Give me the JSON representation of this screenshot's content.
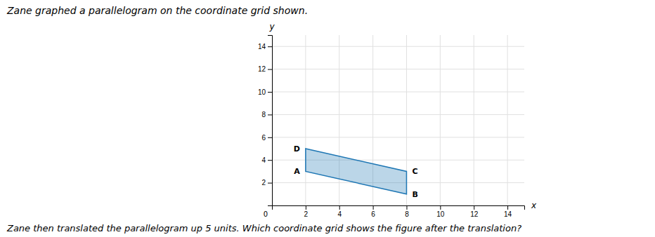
{
  "chart_data": {
    "type": "polygon",
    "title": "Zane graphed a parallelogram on the coordinate grid shown.",
    "x": [
      2,
      2,
      8,
      8
    ],
    "y": [
      3,
      5,
      3,
      1
    ],
    "labels": [
      "A",
      "D",
      "C",
      "B"
    ],
    "x_label": "x",
    "y_label": "y",
    "xlim": [
      0,
      15
    ],
    "ylim": [
      0,
      15
    ],
    "xticks": [
      2,
      4,
      6,
      8,
      10,
      12,
      14
    ],
    "yticks": [
      2,
      4,
      6,
      8,
      10,
      12,
      14
    ],
    "grid": true,
    "annotations": [
      {
        "text": "0",
        "x": 0,
        "y": 0
      },
      {
        "text": "Zane then translated the parallelogram up 5 units.  Which coordinate grid shows the figure after the translation?"
      }
    ]
  }
}
